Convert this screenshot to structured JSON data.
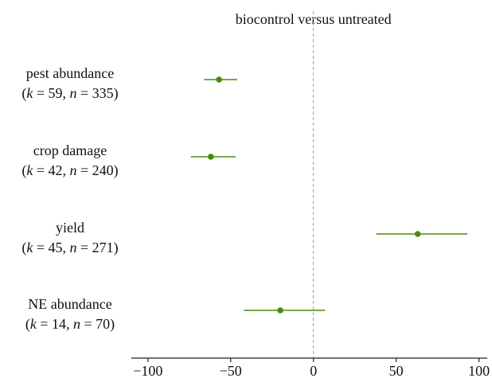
{
  "chart_data": {
    "type": "forest",
    "title": "biocontrol versus untreated",
    "xlabel": "",
    "ylabel": "",
    "xlim": [
      -110,
      105
    ],
    "xticks": [
      -100,
      -50,
      0,
      50,
      100
    ],
    "xtick_labels": [
      "−100",
      "−50",
      "0",
      "50",
      "100"
    ],
    "reference_line": 0,
    "grid": false,
    "rows": [
      {
        "label": "pest abundance",
        "sublabel_k": "59",
        "sublabel_n": "335",
        "estimate": -57,
        "ci_low": -66,
        "ci_high": -46
      },
      {
        "label": "crop damage",
        "sublabel_k": "42",
        "sublabel_n": "240",
        "estimate": -62,
        "ci_low": -74,
        "ci_high": -47
      },
      {
        "label": "yield",
        "sublabel_k": "45",
        "sublabel_n": "271",
        "estimate": 63,
        "ci_low": 38,
        "ci_high": 93
      },
      {
        "label": "NE abundance",
        "sublabel_k": "14",
        "sublabel_n": "70",
        "estimate": -20,
        "ci_low": -42,
        "ci_high": 7
      }
    ]
  },
  "colors": {
    "marker": "#4a8a10",
    "ci_line": "#4a8a10",
    "reference_line": "#999999",
    "axis": "#222222"
  }
}
